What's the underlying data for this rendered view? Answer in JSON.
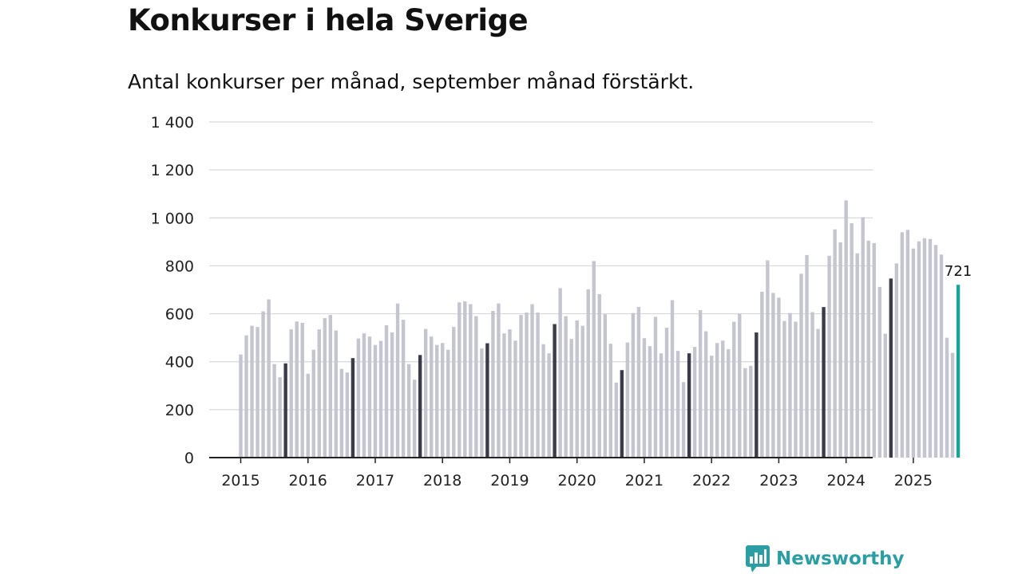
{
  "header": {
    "title": "Konkurser i hela Sverige",
    "subtitle": "Antal konkurser per månad, september månad förstärkt."
  },
  "branding": {
    "logo_text": "Newsworthy",
    "logo_icon": "bar-chart-speech-icon",
    "color": "#2a9ea3"
  },
  "colors": {
    "bar": "#c5c5cf",
    "september": "#3c3b4a",
    "latest": "#1aa39b",
    "grid": "#d8d8dc",
    "axis": "#222222"
  },
  "chart_data": {
    "type": "bar",
    "title": "Konkurser i hela Sverige",
    "subtitle": "Antal konkurser per månad, september månad förstärkt.",
    "xlabel": "",
    "ylabel": "",
    "ylim": [
      0,
      1400
    ],
    "yticks": [
      0,
      200,
      400,
      600,
      800,
      1000,
      1200,
      1400
    ],
    "ytick_labels": [
      "0",
      "200",
      "400",
      "600",
      "800",
      "1 000",
      "1 200",
      "1 400"
    ],
    "xtick_labels": [
      "2015",
      "2016",
      "2017",
      "2018",
      "2019",
      "2020",
      "2021",
      "2022",
      "2023",
      "2024",
      "2025"
    ],
    "grid": true,
    "start": "2015-01",
    "highlight": "september",
    "values": [
      430,
      510,
      550,
      545,
      610,
      660,
      390,
      335,
      393,
      535,
      568,
      562,
      350,
      450,
      535,
      582,
      595,
      530,
      370,
      355,
      415,
      497,
      518,
      505,
      470,
      487,
      552,
      522,
      643,
      575,
      390,
      325,
      428,
      537,
      505,
      470,
      478,
      450,
      545,
      648,
      652,
      640,
      590,
      455,
      477,
      612,
      643,
      518,
      535,
      488,
      595,
      605,
      640,
      605,
      473,
      435,
      557,
      707,
      590,
      495,
      572,
      550,
      702,
      820,
      682,
      598,
      475,
      313,
      365,
      480,
      603,
      628,
      498,
      465,
      587,
      435,
      542,
      657,
      445,
      315,
      435,
      462,
      615,
      527,
      425,
      478,
      488,
      452,
      567,
      600,
      373,
      383,
      522,
      692,
      823,
      687,
      667,
      570,
      603,
      567,
      767,
      845,
      607,
      537,
      628,
      842,
      952,
      898,
      1073,
      978,
      852,
      1003,
      905,
      895,
      712,
      517,
      747,
      810,
      940,
      950,
      872,
      902,
      915,
      912,
      887,
      847,
      500,
      437,
      721
    ],
    "annotation": {
      "label": "721",
      "value": 721,
      "period": "2025-09"
    }
  }
}
